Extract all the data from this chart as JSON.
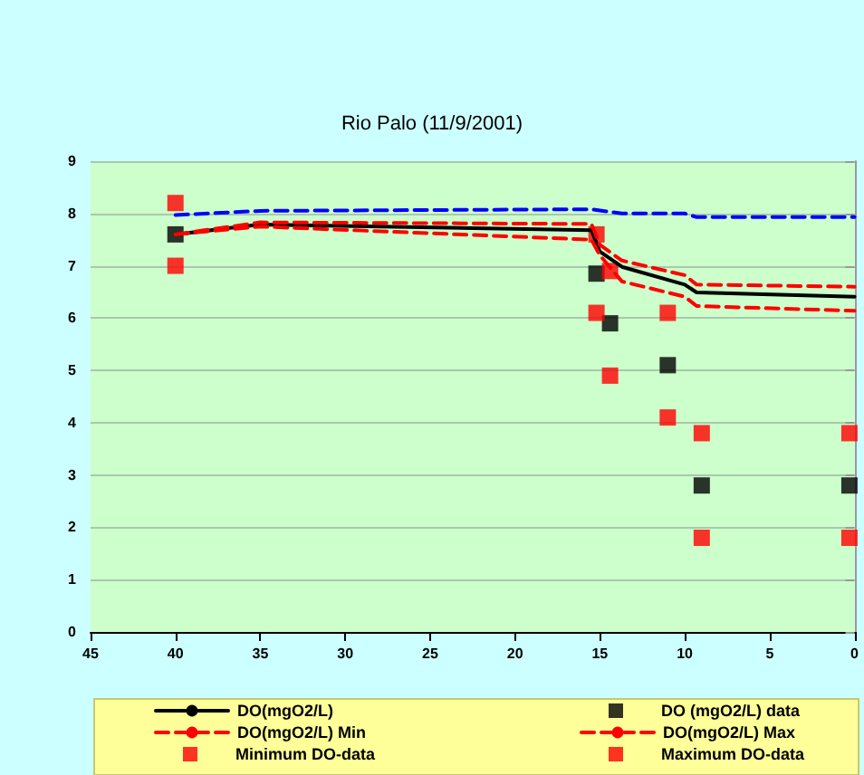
{
  "chart_data": {
    "type": "line",
    "title": "Rio Palo (11/9/2001)",
    "xlim": [
      45,
      0
    ],
    "xticks": [
      45,
      40,
      35,
      30,
      25,
      20,
      15,
      10,
      5,
      0
    ],
    "ylim": [
      0,
      9
    ],
    "yticks": [
      0,
      1,
      2,
      3,
      4,
      5,
      6,
      7,
      8,
      9
    ],
    "grid": "y",
    "legend": "bottom",
    "series": [
      {
        "color": "#0000ff",
        "line_style": "dashed",
        "marker": "none",
        "x": [
          40,
          35,
          15.5,
          13.7,
          10,
          9.3,
          0
        ],
        "values": [
          7.97,
          8.05,
          8.08,
          8.0,
          8.0,
          7.93,
          7.93
        ]
      },
      {
        "name": "DO(mgO2/L)",
        "color": "#000000",
        "line_style": "solid",
        "marker": "none",
        "x": [
          40,
          35,
          15.5,
          15.0,
          13.7,
          10,
          9.3,
          0
        ],
        "values": [
          7.6,
          7.79,
          7.68,
          7.27,
          6.98,
          6.64,
          6.49,
          6.41
        ]
      },
      {
        "name": "DO (mgO2/L) data",
        "type": "scatter",
        "color": "#000000",
        "marker": "square",
        "x": [
          40,
          15.2,
          14.4,
          11,
          9,
          0.3
        ],
        "values": [
          7.6,
          6.85,
          5.9,
          5.1,
          2.8,
          2.8
        ]
      },
      {
        "name": "DO(mgO2/L) Min",
        "color": "#ff0000",
        "line_style": "dashed",
        "marker": "none",
        "x": [
          40,
          35,
          15.5,
          15.0,
          13.7,
          10,
          9.3,
          0
        ],
        "values": [
          7.6,
          7.75,
          7.5,
          7.2,
          6.7,
          6.41,
          6.23,
          6.14
        ]
      },
      {
        "name": "DO(mgO2/L) Max",
        "color": "#ff0000",
        "line_style": "dashed",
        "marker": "none",
        "x": [
          40,
          35,
          15.5,
          15.0,
          13.7,
          10,
          9.3,
          0
        ],
        "values": [
          7.6,
          7.83,
          7.8,
          7.4,
          7.1,
          6.82,
          6.64,
          6.6
        ]
      },
      {
        "name": "Minimum DO-data",
        "type": "scatter",
        "color": "#ff0000",
        "marker": "square",
        "x": [
          40,
          15.2,
          14.4,
          11,
          9,
          0.3
        ],
        "values": [
          7.0,
          6.1,
          4.9,
          4.1,
          1.8,
          1.8
        ]
      },
      {
        "name": "Maximum DO-data",
        "type": "scatter",
        "color": "#ff0000",
        "marker": "square",
        "x": [
          40,
          15.2,
          14.4,
          11,
          9,
          0.3
        ],
        "values": [
          8.2,
          7.6,
          6.9,
          6.1,
          3.8,
          3.8
        ]
      }
    ]
  }
}
